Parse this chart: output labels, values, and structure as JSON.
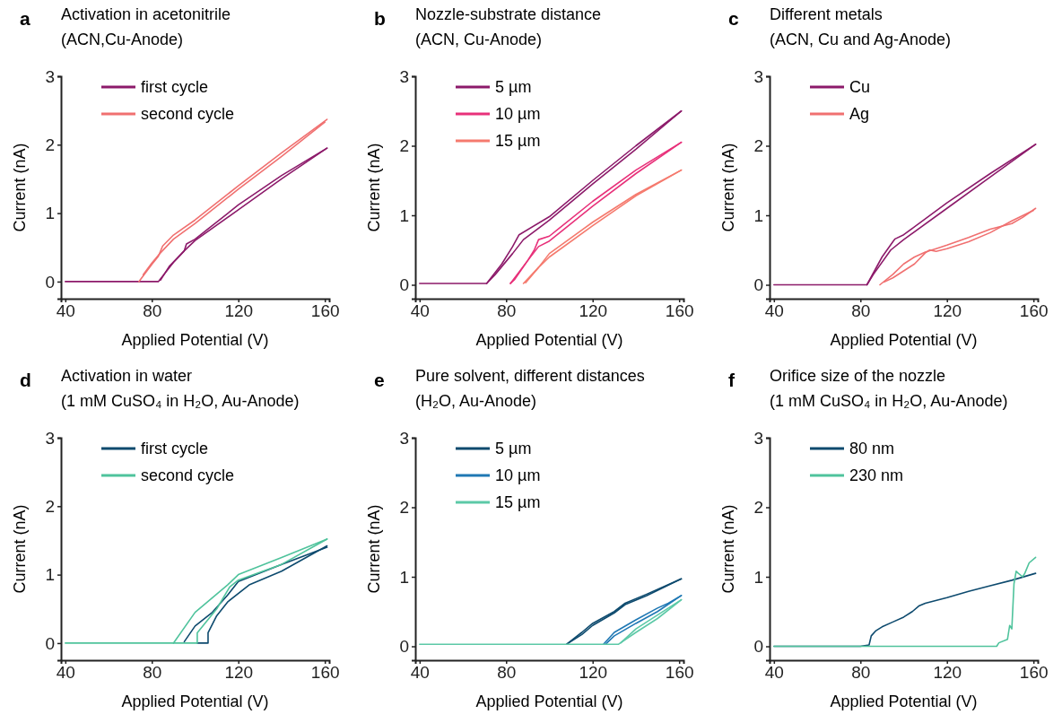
{
  "chart_data": [
    {
      "type": "line",
      "title": "Activation in acetonitrile",
      "subtitle": "(ACN,Cu-Anode)",
      "annotations": [
        "a"
      ],
      "xlabel": "Applied Potential (V)",
      "ylabel": "Current (nA)",
      "xlim": [
        38,
        162
      ],
      "xticks": [
        40,
        80,
        120,
        160
      ],
      "ylim": [
        -0.25,
        3
      ],
      "yticks": [
        0,
        1,
        2,
        3
      ],
      "legend": "top left",
      "series": [
        {
          "name": "first cycle",
          "color": "#8c1a6a",
          "x": [
            40,
            60,
            83,
            90,
            95,
            96,
            100,
            120,
            140,
            161
          ],
          "values": [
            0,
            0,
            0,
            0.28,
            0.45,
            0.55,
            0.62,
            1.12,
            1.55,
            1.95
          ]
        },
        {
          "color": "#8c1a6a",
          "x": [
            84,
            88,
            95,
            100,
            120,
            140,
            161
          ],
          "values": [
            0.02,
            0.22,
            0.45,
            0.6,
            1.05,
            1.5,
            1.95
          ]
        },
        {
          "name": "second cycle",
          "color": "#f07070",
          "x": [
            74,
            80,
            83,
            85,
            90,
            100,
            120,
            140,
            161
          ],
          "values": [
            0,
            0.25,
            0.37,
            0.52,
            0.68,
            0.9,
            1.4,
            1.88,
            2.37
          ]
        },
        {
          "color": "#f07070",
          "x": [
            76,
            80,
            84,
            90,
            100,
            120,
            140,
            160
          ],
          "values": [
            0.1,
            0.27,
            0.42,
            0.62,
            0.85,
            1.35,
            1.83,
            2.33
          ]
        }
      ]
    },
    {
      "type": "line",
      "title": "Nozzle-substrate distance",
      "subtitle": "(ACN, Cu-Anode)",
      "annotations": [
        "b"
      ],
      "xlabel": "Applied Potential (V)",
      "ylabel": "Current (nA)",
      "xlim": [
        38,
        162
      ],
      "xticks": [
        40,
        80,
        120,
        160
      ],
      "ylim": [
        -0.2,
        3
      ],
      "yticks": [
        0,
        1,
        2,
        3
      ],
      "legend": "top left",
      "series": [
        {
          "name": "5 µm",
          "color": "#8c1a6a",
          "x": [
            40,
            71,
            78,
            83,
            86,
            100,
            120,
            140,
            161
          ],
          "values": [
            0.02,
            0.02,
            0.3,
            0.55,
            0.72,
            0.98,
            1.5,
            2.0,
            2.5
          ]
        },
        {
          "color": "#8c1a6a",
          "x": [
            71,
            75,
            83,
            88,
            100,
            120,
            140,
            161
          ],
          "values": [
            0.02,
            0.15,
            0.45,
            0.65,
            0.93,
            1.45,
            1.95,
            2.5
          ]
        },
        {
          "name": "10 µm",
          "color": "#e8317a",
          "x": [
            82,
            90,
            93,
            95,
            100,
            120,
            140,
            161
          ],
          "values": [
            0.02,
            0.35,
            0.5,
            0.65,
            0.7,
            1.2,
            1.65,
            2.05
          ]
        },
        {
          "color": "#e8317a",
          "x": [
            82,
            84,
            90,
            95,
            100,
            120,
            140,
            161
          ],
          "values": [
            0.02,
            0.08,
            0.35,
            0.55,
            0.63,
            1.13,
            1.6,
            2.05
          ]
        },
        {
          "name": "15 µm",
          "color": "#f57a6e",
          "x": [
            88,
            95,
            100,
            120,
            140,
            161
          ],
          "values": [
            0.02,
            0.25,
            0.45,
            0.9,
            1.3,
            1.65
          ]
        },
        {
          "color": "#f57a6e",
          "x": [
            89,
            95,
            100,
            120,
            140,
            161
          ],
          "values": [
            0.03,
            0.25,
            0.4,
            0.85,
            1.28,
            1.65
          ]
        }
      ]
    },
    {
      "type": "line",
      "title": "Different metals",
      "subtitle": "(ACN, Cu and Ag-Anode)",
      "annotations": [
        "c"
      ],
      "xlabel": "Applied Potential (V)",
      "ylabel": "Current (nA)",
      "xlim": [
        38,
        162
      ],
      "xticks": [
        40,
        80,
        120,
        160
      ],
      "ylim": [
        -0.2,
        3
      ],
      "yticks": [
        0,
        1,
        2,
        3
      ],
      "legend": "top left",
      "series": [
        {
          "name": "Cu",
          "color": "#8c1a6a",
          "x": [
            40,
            83,
            90,
            95,
            96,
            100,
            120,
            140,
            161
          ],
          "values": [
            0,
            0,
            0.4,
            0.62,
            0.66,
            0.72,
            1.18,
            1.6,
            2.02
          ]
        },
        {
          "color": "#8c1a6a",
          "x": [
            83,
            86,
            94,
            100,
            120,
            140,
            161
          ],
          "values": [
            0,
            0.15,
            0.5,
            0.65,
            1.1,
            1.55,
            2.02
          ]
        },
        {
          "name": "Ag",
          "color": "#f07070",
          "x": [
            89,
            95,
            100,
            105,
            110,
            115,
            120,
            130,
            140,
            150,
            155,
            161
          ],
          "values": [
            0,
            0.15,
            0.3,
            0.4,
            0.47,
            0.52,
            0.57,
            0.68,
            0.8,
            0.88,
            0.97,
            1.1
          ]
        },
        {
          "color": "#f07070",
          "x": [
            91,
            95,
            100,
            105,
            110,
            112,
            115,
            120,
            130,
            140,
            150,
            160
          ],
          "values": [
            0.04,
            0.1,
            0.2,
            0.3,
            0.46,
            0.5,
            0.48,
            0.52,
            0.62,
            0.75,
            0.92,
            1.07
          ]
        }
      ]
    },
    {
      "type": "line",
      "title": "Activation in water",
      "subtitle": "(1 mM CuSO₄ in H₂O, Au-Anode)",
      "annotations": [
        "d"
      ],
      "xlabel": "Applied Potential (V)",
      "ylabel": "Current (nA)",
      "xlim": [
        38,
        162
      ],
      "xticks": [
        40,
        80,
        120,
        160
      ],
      "ylim": [
        -0.25,
        3
      ],
      "yticks": [
        0,
        1,
        2,
        3
      ],
      "legend": "top left",
      "series": [
        {
          "name": "first cycle",
          "color": "#0d4a6e",
          "x": [
            101,
            106,
            106,
            110,
            115,
            125,
            140,
            161
          ],
          "values": [
            0,
            0,
            0.15,
            0.4,
            0.6,
            0.85,
            1.05,
            1.42
          ]
        },
        {
          "color": "#0d4a6e",
          "x": [
            95,
            100,
            108,
            115,
            120,
            140,
            161
          ],
          "values": [
            0.02,
            0.25,
            0.45,
            0.7,
            0.9,
            1.15,
            1.4
          ]
        },
        {
          "name": "second cycle",
          "color": "#4fc39c",
          "x": [
            40,
            101,
            101,
            110,
            116,
            120,
            140,
            161
          ],
          "values": [
            0,
            0,
            0.15,
            0.5,
            0.82,
            0.92,
            1.15,
            1.52
          ]
        },
        {
          "color": "#4fc39c",
          "x": [
            90,
            100,
            115,
            120,
            140,
            161
          ],
          "values": [
            0,
            0.45,
            0.85,
            1.0,
            1.25,
            1.52
          ]
        }
      ]
    },
    {
      "type": "line",
      "title": "Pure solvent, different distances",
      "subtitle": "(H₂O, Au-Anode)",
      "annotations": [
        "e"
      ],
      "xlabel": "Applied Potential (V)",
      "ylabel": "Current (nA)",
      "xlim": [
        38,
        162
      ],
      "xticks": [
        40,
        80,
        120,
        160
      ],
      "ylim": [
        -0.2,
        3
      ],
      "yticks": [
        0,
        1,
        2,
        3
      ],
      "legend": "top left",
      "series": [
        {
          "name": "5 µm",
          "color": "#0d4a6e",
          "x": [
            108,
            115,
            120,
            130,
            135,
            145,
            161
          ],
          "values": [
            0.03,
            0.2,
            0.33,
            0.5,
            0.62,
            0.75,
            0.97
          ]
        },
        {
          "color": "#0d4a6e",
          "x": [
            108,
            115,
            120,
            130,
            135,
            145,
            161
          ],
          "values": [
            0.03,
            0.17,
            0.3,
            0.48,
            0.6,
            0.73,
            0.97
          ]
        },
        {
          "name": "10 µm",
          "color": "#1f78b4",
          "x": [
            125,
            130,
            140,
            150,
            155,
            161
          ],
          "values": [
            0.03,
            0.2,
            0.38,
            0.55,
            0.62,
            0.73
          ]
        },
        {
          "color": "#1f78b4",
          "x": [
            126,
            130,
            140,
            150,
            161
          ],
          "values": [
            0.03,
            0.15,
            0.33,
            0.5,
            0.73
          ]
        },
        {
          "name": "15 µm",
          "color": "#5cc9a7",
          "x": [
            40,
            132,
            140,
            150,
            161
          ],
          "values": [
            0.03,
            0.03,
            0.2,
            0.4,
            0.67
          ]
        },
        {
          "color": "#5cc9a7",
          "x": [
            133,
            140,
            150,
            161
          ],
          "values": [
            0.05,
            0.25,
            0.45,
            0.67
          ]
        }
      ]
    },
    {
      "type": "line",
      "title": "Orifice size of the nozzle",
      "subtitle": "(1 mM CuSO₄ in H₂O, Au-Anode)",
      "annotations": [
        "f"
      ],
      "xlabel": "Applied Potential (V)",
      "ylabel": "Current (nA)",
      "xlim": [
        38,
        162
      ],
      "xticks": [
        40,
        80,
        120,
        160
      ],
      "ylim": [
        -0.2,
        3
      ],
      "yticks": [
        0,
        1,
        2,
        3
      ],
      "legend": "top left",
      "series": [
        {
          "name": "80 nm",
          "color": "#0d4a6e",
          "x": [
            40,
            80,
            84,
            85,
            87,
            90,
            95,
            100,
            104,
            107,
            110,
            120,
            130,
            140,
            150,
            161
          ],
          "values": [
            0,
            0,
            0.02,
            0.15,
            0.22,
            0.28,
            0.35,
            0.42,
            0.5,
            0.58,
            0.62,
            0.7,
            0.79,
            0.87,
            0.95,
            1.05
          ]
        },
        {
          "name": "230 nm",
          "color": "#4fc39c",
          "x": [
            40,
            80,
            100,
            120,
            143,
            144,
            148,
            149,
            150,
            151,
            152,
            153,
            155,
            156,
            158,
            161
          ],
          "values": [
            0,
            0,
            0,
            0,
            0,
            0.05,
            0.1,
            0.3,
            0.25,
            0.9,
            1.08,
            1.05,
            1.0,
            1.05,
            1.2,
            1.28
          ]
        }
      ]
    }
  ]
}
